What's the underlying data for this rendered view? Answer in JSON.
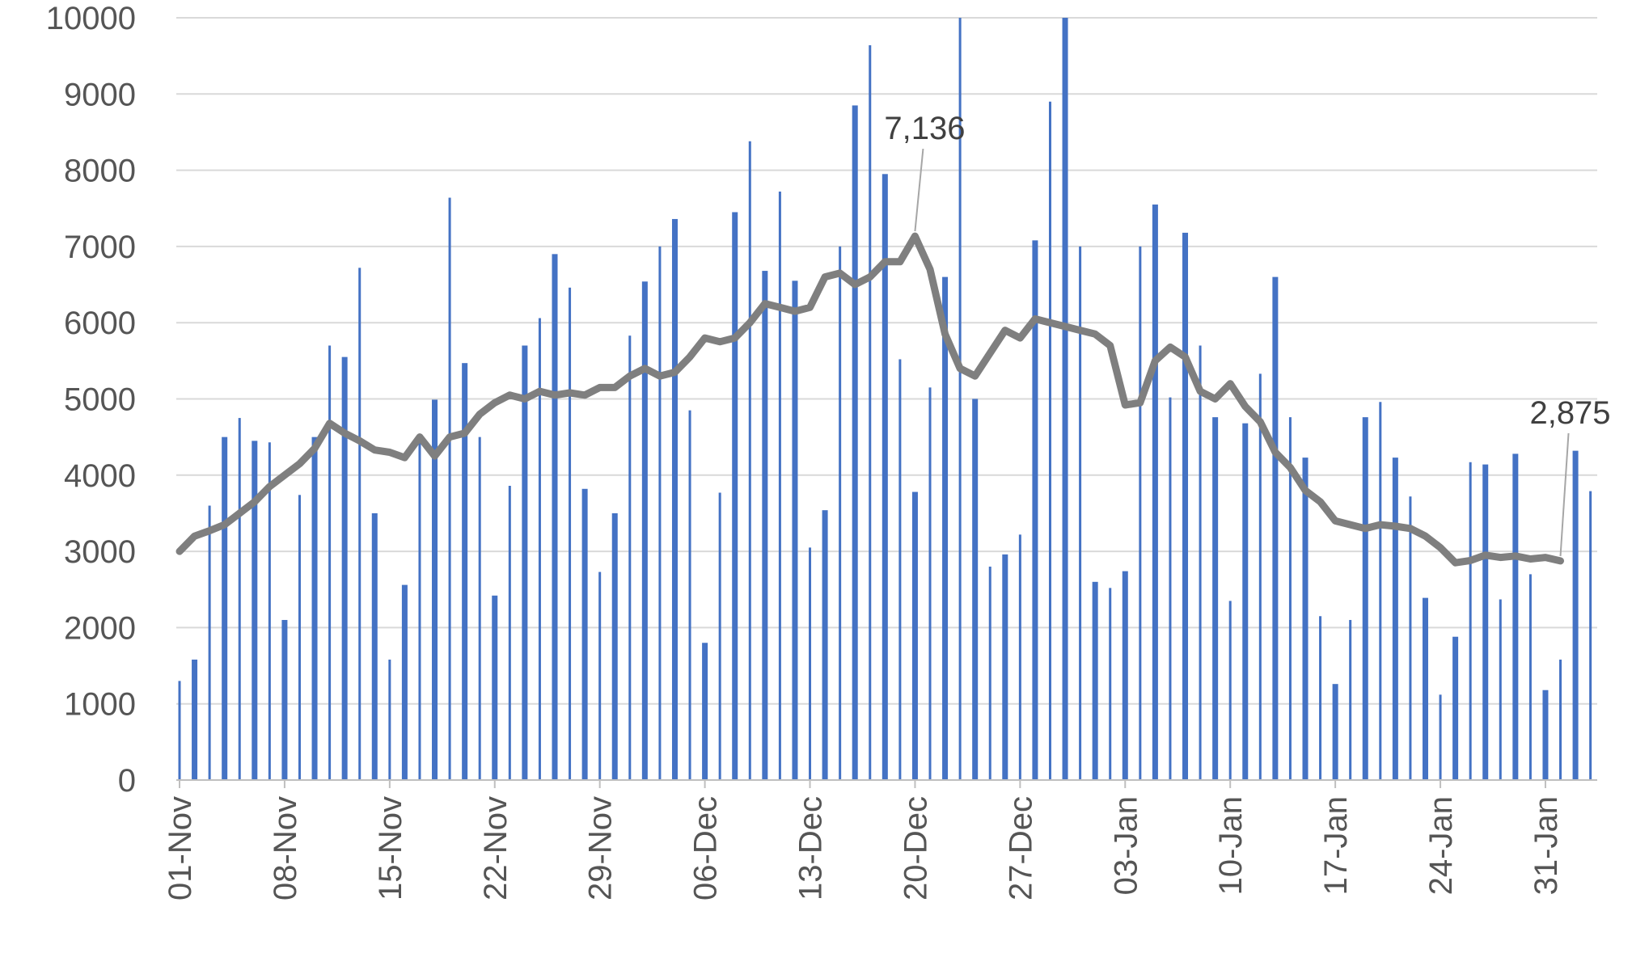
{
  "chart_data": {
    "type": "bar",
    "title": "",
    "xlabel": "",
    "ylabel": "",
    "ylim": [
      0,
      10000
    ],
    "yticks": [
      0,
      1000,
      2000,
      3000,
      4000,
      5000,
      6000,
      7000,
      8000,
      9000,
      10000
    ],
    "grid": "horizontal",
    "legend": "none",
    "start_date": "2020-11-01",
    "xtick_labels": [
      "01-Nov",
      "08-Nov",
      "15-Nov",
      "22-Nov",
      "29-Nov",
      "06-Dec",
      "13-Dec",
      "20-Dec",
      "27-Dec",
      "03-Jan",
      "10-Jan",
      "17-Jan",
      "24-Jan",
      "31-Jan"
    ],
    "colors": {
      "bars": "#4472C4",
      "line": "#7F7F7F",
      "grid": "#D9D9D9",
      "axis": "#BFBFBF"
    },
    "series": [
      {
        "kind": "bar",
        "values": [
          1300,
          1580,
          3600,
          4500,
          4750,
          4450,
          4430,
          2100,
          3740,
          4500,
          5700,
          5550,
          6720,
          3500,
          1580,
          2560,
          4450,
          4990,
          7640,
          5470,
          4500,
          2420,
          3860,
          5700,
          6060,
          6900,
          6460,
          3820,
          2730,
          3500,
          5830,
          6540,
          7000,
          7360,
          4850,
          1800,
          3770,
          7450,
          8380,
          6680,
          7720,
          6550,
          3050,
          3540,
          7000,
          8850,
          9640,
          7950,
          5520,
          3780,
          5150,
          6600,
          10000,
          5000,
          2800,
          2960,
          3220,
          7080,
          8900,
          10000,
          7000,
          2600,
          2520,
          2740,
          7000,
          7550,
          5020,
          7180,
          5700,
          4760,
          2350,
          4680,
          5330,
          6600,
          4760,
          4230,
          2150,
          1260,
          2100,
          4760,
          4960,
          4230,
          3720,
          2390,
          1120,
          1880,
          4170,
          4140,
          2370,
          4280,
          2700,
          1180,
          1580,
          4320,
          3790
        ]
      },
      {
        "kind": "line",
        "values": [
          3000,
          3200,
          3270,
          3350,
          3500,
          3650,
          3850,
          4000,
          4150,
          4350,
          4680,
          4550,
          4450,
          4330,
          4300,
          4230,
          4500,
          4250,
          4500,
          4550,
          4800,
          4950,
          5050,
          5000,
          5100,
          5050,
          5080,
          5050,
          5150,
          5150,
          5300,
          5400,
          5300,
          5350,
          5550,
          5800,
          5750,
          5800,
          6000,
          6250,
          6200,
          6150,
          6200,
          6600,
          6650,
          6500,
          6600,
          6800,
          6800,
          7136,
          6700,
          5850,
          5400,
          5300,
          5600,
          5900,
          5800,
          6050,
          6000,
          5950,
          5900,
          5850,
          5700,
          4920,
          4950,
          5500,
          5680,
          5550,
          5100,
          5000,
          5200,
          4900,
          4700,
          4300,
          4100,
          3800,
          3650,
          3400,
          3350,
          3300,
          3350,
          3330,
          3300,
          3200,
          3050,
          2850,
          2880,
          2950,
          2920,
          2940,
          2900,
          2920,
          2875
        ]
      }
    ],
    "data_labels": [
      {
        "series": 1,
        "index": 49,
        "text": "7,136"
      },
      {
        "series": 1,
        "index": 92,
        "text": "2,875"
      }
    ]
  }
}
